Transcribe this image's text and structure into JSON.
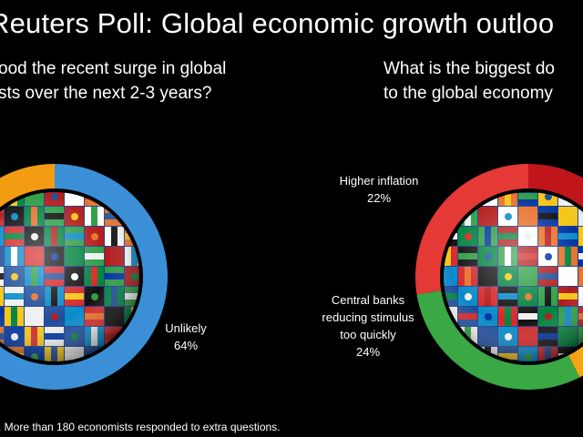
{
  "title": "Reuters Poll: Global economic growth outloo",
  "questions": {
    "left": [
      "ood the recent surge in global",
      "sts over the next 2-3 years?"
    ],
    "right": [
      "What is the biggest do",
      "to the global economy"
    ]
  },
  "footnote": ". More than 180 economists responded to extra questions.",
  "colors": {
    "blue": "#3b8fd6",
    "orange": "#f39c12",
    "red": "#e53935",
    "dark_red": "#c0151b",
    "green": "#3aa845",
    "yellow": "#f4a418",
    "background": "#000000"
  },
  "chart_data": [
    {
      "type": "pie",
      "slices": [
        {
          "label": "Unlikely",
          "value": 64,
          "value_label": "64%",
          "color": "#3b8fd6"
        },
        {
          "label": "",
          "value": 36,
          "value_label": "",
          "color": "#f39c12"
        }
      ]
    },
    {
      "type": "pie",
      "slices": [
        {
          "label": "",
          "value": 18,
          "value_label": "",
          "color": "#c0151b"
        },
        {
          "label": "",
          "value": 16,
          "value_label": "",
          "color": "#f4a418"
        },
        {
          "label": "Central banks reducing stimulus too quickly",
          "value": 24,
          "value_label": "24%",
          "color": "#3aa845"
        },
        {
          "label": "Higher inflation",
          "value": 22,
          "value_label": "22%",
          "color": "#e53935"
        }
      ]
    }
  ]
}
